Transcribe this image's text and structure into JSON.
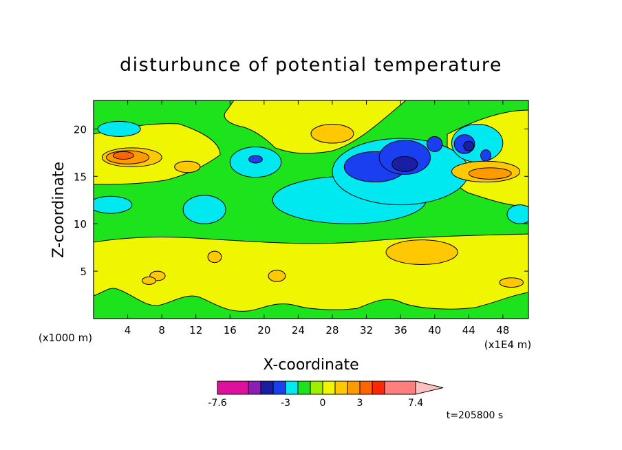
{
  "chart_data": {
    "type": "heatmap",
    "title": "disturbunce of potential temperature",
    "xlabel": "X-coordinate",
    "ylabel": "Z-coordinate",
    "x_unit": "(x1E4 m)",
    "y_unit": "(x1000 m)",
    "xlim": [
      0,
      51
    ],
    "ylim": [
      0,
      23
    ],
    "xticks": [
      "4",
      "8",
      "12",
      "16",
      "20",
      "24",
      "28",
      "32",
      "36",
      "40",
      "44",
      "48"
    ],
    "yticks": [
      "5",
      "10",
      "15",
      "20"
    ],
    "colorbar": {
      "levels": [
        -7.6,
        -6.4,
        -5.2,
        -4.1,
        -3,
        -1.9,
        -0.9,
        0,
        1,
        2,
        3,
        4.1,
        5.2,
        7.4
      ],
      "labels": [
        "-7.6",
        "-3",
        "0",
        "3",
        "7.4"
      ],
      "colors": [
        "#e0109e",
        "#8b1fb4",
        "#1a1ea0",
        "#1a3ff0",
        "#00e8f0",
        "#1de31d",
        "#9fee00",
        "#f0f500",
        "#ffc800",
        "#ff9a00",
        "#ff6500",
        "#ff2800",
        "#ff7f7f",
        "#ffc0c0"
      ]
    },
    "time_label": "t=205800 s",
    "regions": [
      {
        "level": "-0.9",
        "color": "#00e8f0",
        "x": 30,
        "z": 12.5,
        "rx": 9,
        "ry": 2.5
      },
      {
        "level": "-0.9",
        "color": "#00e8f0",
        "x": 36,
        "z": 15.5,
        "rx": 8,
        "ry": 3.5
      },
      {
        "level": "-0.9",
        "color": "#00e8f0",
        "x": 19,
        "z": 16.5,
        "rx": 3,
        "ry": 1.6
      },
      {
        "level": "-0.9",
        "color": "#00e8f0",
        "x": 13,
        "z": 11.5,
        "rx": 2.5,
        "ry": 1.5
      },
      {
        "level": "-0.9",
        "color": "#00e8f0",
        "x": 2,
        "z": 12,
        "rx": 2.5,
        "ry": 0.9
      },
      {
        "level": "-0.9",
        "color": "#00e8f0",
        "x": 3,
        "z": 20,
        "rx": 2.5,
        "ry": 0.8
      },
      {
        "level": "-0.9",
        "color": "#00e8f0",
        "x": 45,
        "z": 18.5,
        "rx": 3,
        "ry": 2
      },
      {
        "level": "-0.9",
        "color": "#00e8f0",
        "x": 50,
        "z": 11,
        "rx": 1.5,
        "ry": 1
      },
      {
        "level": "-3",
        "color": "#1a3ff0",
        "x": 33,
        "z": 16,
        "rx": 3.6,
        "ry": 1.6
      },
      {
        "level": "-3",
        "color": "#1a3ff0",
        "x": 36.5,
        "z": 17,
        "rx": 3,
        "ry": 1.8
      },
      {
        "level": "-3",
        "color": "#1a3ff0",
        "x": 19,
        "z": 16.8,
        "rx": 0.8,
        "ry": 0.4
      },
      {
        "level": "-3",
        "color": "#1a3ff0",
        "x": 40,
        "z": 18.4,
        "rx": 0.9,
        "ry": 0.8
      },
      {
        "level": "-3",
        "color": "#1a3ff0",
        "x": 43.5,
        "z": 18.4,
        "rx": 1.2,
        "ry": 1
      },
      {
        "level": "-3",
        "color": "#1a3ff0",
        "x": 46,
        "z": 17.2,
        "rx": 0.6,
        "ry": 0.6
      },
      {
        "level": "-4.1",
        "color": "#1a1ea0",
        "x": 36.5,
        "z": 16.3,
        "rx": 1.5,
        "ry": 0.8
      },
      {
        "level": "-4.1",
        "color": "#1a1ea0",
        "x": 44,
        "z": 18.2,
        "rx": 0.6,
        "ry": 0.5
      },
      {
        "level": "1",
        "color": "#ffc800",
        "x": 4.5,
        "z": 17,
        "rx": 3.5,
        "ry": 1
      },
      {
        "level": "1",
        "color": "#ffc800",
        "x": 28,
        "z": 19.5,
        "rx": 2.5,
        "ry": 1
      },
      {
        "level": "1",
        "color": "#ffc800",
        "x": 38.5,
        "z": 7,
        "rx": 4.2,
        "ry": 1.3
      },
      {
        "level": "1",
        "color": "#ffc800",
        "x": 14.2,
        "z": 6.5,
        "rx": 0.8,
        "ry": 0.6
      },
      {
        "level": "1",
        "color": "#ffc800",
        "x": 21.5,
        "z": 4.5,
        "rx": 1,
        "ry": 0.6
      },
      {
        "level": "1",
        "color": "#ffc800",
        "x": 7.5,
        "z": 4.5,
        "rx": 0.9,
        "ry": 0.5
      },
      {
        "level": "1",
        "color": "#ffc800",
        "x": 49,
        "z": 3.8,
        "rx": 1.4,
        "ry": 0.5
      },
      {
        "level": "1",
        "color": "#ffc800",
        "x": 46,
        "z": 15.5,
        "rx": 4,
        "ry": 1.1
      },
      {
        "level": "1",
        "color": "#ffc800",
        "x": 11,
        "z": 16,
        "rx": 1.5,
        "ry": 0.6
      },
      {
        "level": "1",
        "color": "#ffc800",
        "x": 6.5,
        "z": 4,
        "rx": 0.8,
        "ry": 0.4
      },
      {
        "level": "2",
        "color": "#ff9a00",
        "x": 4,
        "z": 17,
        "rx": 2.5,
        "ry": 0.7
      },
      {
        "level": "2",
        "color": "#ff9a00",
        "x": 46.5,
        "z": 15.3,
        "rx": 2.5,
        "ry": 0.6
      },
      {
        "level": "3",
        "color": "#ff6500",
        "x": 3.5,
        "z": 17.2,
        "rx": 1.2,
        "ry": 0.4
      }
    ]
  }
}
